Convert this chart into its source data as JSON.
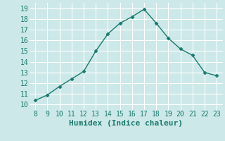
{
  "x": [
    8,
    9,
    10,
    11,
    12,
    13,
    14,
    15,
    16,
    17,
    18,
    19,
    20,
    21,
    22,
    23
  ],
  "y": [
    10.4,
    10.9,
    11.7,
    12.4,
    13.1,
    15.0,
    16.6,
    17.6,
    18.2,
    18.9,
    17.6,
    16.2,
    15.2,
    14.6,
    13.0,
    12.7
  ],
  "line_color": "#1a7a6e",
  "marker": "D",
  "marker_size": 2.5,
  "bg_color": "#cce8e8",
  "grid_color": "#ffffff",
  "xlabel": "Humidex (Indice chaleur)",
  "xlabel_fontsize": 8,
  "tick_fontsize": 7,
  "xlim": [
    7.5,
    23.5
  ],
  "ylim": [
    9.5,
    19.5
  ],
  "yticks": [
    10,
    11,
    12,
    13,
    14,
    15,
    16,
    17,
    18,
    19
  ],
  "xticks": [
    8,
    9,
    10,
    11,
    12,
    13,
    14,
    15,
    16,
    17,
    18,
    19,
    20,
    21,
    22,
    23
  ]
}
